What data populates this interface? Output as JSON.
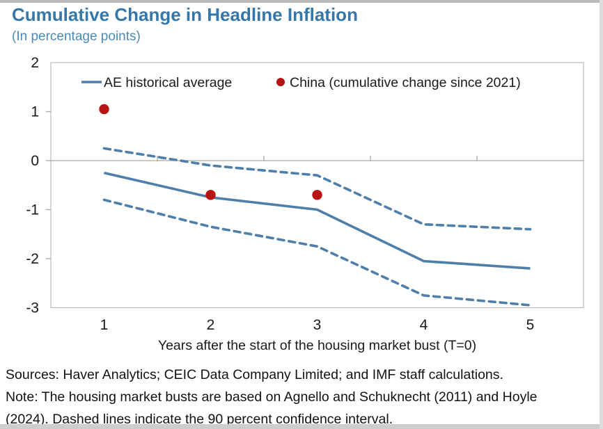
{
  "page": {
    "title": "Cumulative Change in Headline Inflation",
    "subtitle": "(In percentage points)"
  },
  "colors": {
    "title_blue": "#3577a8",
    "subtitle_blue": "#4b8ab5",
    "line_blue": "#4e7fab",
    "china_red": "#b91414",
    "plot_border_gray": "#bfbfbf",
    "zero_line_gray": "#a8a8a8",
    "axis_text": "#1a1a1a"
  },
  "chart_data": {
    "type": "line",
    "title": "Cumulative Change in Headline Inflation",
    "subtitle": "(In percentage points)",
    "x": [
      1,
      2,
      3,
      4,
      5
    ],
    "xlabel": "Years after the start of the housing market bust (T=0)",
    "ylabel": "",
    "ylim": [
      -3,
      2
    ],
    "yticks": [
      2,
      1,
      0,
      -1,
      -2,
      -3
    ],
    "grid": "zero line only",
    "legend_position": "top inside plot",
    "series": [
      {
        "name": "AE historical average",
        "type": "line",
        "style": "solid",
        "color": "#4e7fab",
        "values": [
          -0.25,
          -0.75,
          -1.0,
          -2.05,
          -2.2
        ]
      },
      {
        "name": "90 percent confidence interval (upper, dashed)",
        "type": "line",
        "style": "dashed",
        "color": "#4e7fab",
        "values": [
          0.25,
          -0.1,
          -0.3,
          -1.3,
          -1.4
        ]
      },
      {
        "name": "90 percent confidence interval (lower, dashed)",
        "type": "line",
        "style": "dashed",
        "color": "#4e7fab",
        "values": [
          -0.8,
          -1.35,
          -1.75,
          -2.75,
          -2.95
        ]
      },
      {
        "name": "China (cumulative change since 2021)",
        "type": "scatter",
        "color": "#b91414",
        "values": [
          1.05,
          -0.7,
          -0.7,
          null,
          null
        ]
      }
    ],
    "legend": [
      {
        "label": "AE historical average",
        "marker": "line",
        "color": "#4e7fab"
      },
      {
        "label": "China (cumulative change since 2021)",
        "marker": "dot",
        "color": "#b91414"
      }
    ]
  },
  "footer": {
    "sources": "Sources: Haver Analytics; CEIC Data Company Limited; and IMF staff calculations.",
    "note": "Note: The housing market busts are based on Agnello and Schuknecht (2011) and Hoyle (2024). Dashed lines indicate the 90 percent confidence interval."
  }
}
